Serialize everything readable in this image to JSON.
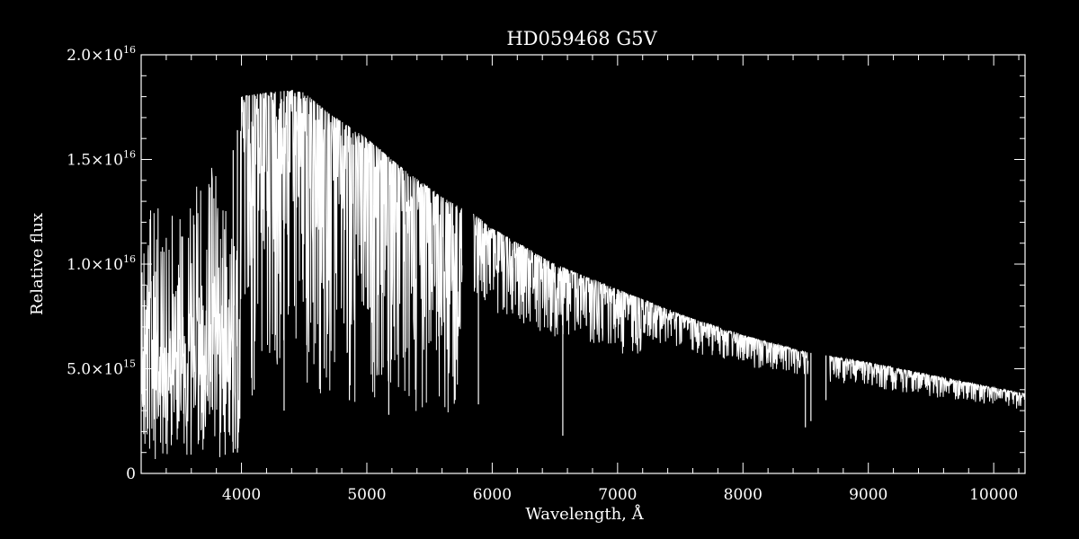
{
  "colors": {
    "background": "#000000",
    "foreground": "#ffffff"
  },
  "chart_data": {
    "type": "line",
    "title": "HD059468   G5V",
    "xlabel": "Wavelength, Å",
    "ylabel": "Relative flux",
    "xlim": [
      3200,
      10250
    ],
    "ylim": [
      0,
      2e+16
    ],
    "grid": false,
    "legend": "none",
    "x_ticks": [
      {
        "value": 4000,
        "label": "4000"
      },
      {
        "value": 5000,
        "label": "5000"
      },
      {
        "value": 6000,
        "label": "6000"
      },
      {
        "value": 7000,
        "label": "7000"
      },
      {
        "value": 8000,
        "label": "8000"
      },
      {
        "value": 9000,
        "label": "9000"
      },
      {
        "value": 10000,
        "label": "10000"
      }
    ],
    "y_ticks": [
      {
        "value": 0,
        "mantissa": "0",
        "exp": ""
      },
      {
        "value": 5000000000000000.0,
        "mantissa": "5.0×10",
        "exp": "15"
      },
      {
        "value": 1e+16,
        "mantissa": "1.0×10",
        "exp": "16"
      },
      {
        "value": 1.5e+16,
        "mantissa": "1.5×10",
        "exp": "16"
      },
      {
        "value": 2e+16,
        "mantissa": "2.0×10",
        "exp": "16"
      }
    ],
    "series": [
      {
        "continuum": {
          "x": [
            3200,
            3500,
            3800,
            3950,
            4000,
            4200,
            4400,
            4500,
            4700,
            5000,
            5300,
            5600,
            5750,
            5850,
            6000,
            6500,
            7000,
            7500,
            8000,
            8500,
            9000,
            9500,
            10000,
            10250
          ],
          "y": [
            1.25e+16,
            1.35e+16,
            1.5e+16,
            1.55e+16,
            1.8e+16,
            1.82e+16,
            1.83e+16,
            1.82e+16,
            1.72e+16,
            1.6e+16,
            1.45e+16,
            1.32e+16,
            1.27e+16,
            1.24e+16,
            1.17e+16,
            1e+16,
            8800000000000000.0,
            7600000000000000.0,
            6600000000000000.0,
            5800000000000000.0,
            5300000000000000.0,
            4700000000000000.0,
            4100000000000000.0,
            3800000000000000.0
          ]
        },
        "gaps": [
          [
            5760,
            5850
          ],
          [
            8520,
            8690
          ]
        ],
        "absorption_lines": [
          {
            "x": 3934,
            "y": 1000000000000000.0
          },
          {
            "x": 3968,
            "y": 1000000000000000.0
          },
          {
            "x": 4101,
            "y": 4000000000000000.0
          },
          {
            "x": 4340,
            "y": 3000000000000000.0
          },
          {
            "x": 4861,
            "y": 3500000000000000.0
          },
          {
            "x": 5175,
            "y": 2800000000000000.0
          },
          {
            "x": 5890,
            "y": 3300000000000000.0
          },
          {
            "x": 6563,
            "y": 1800000000000000.0
          },
          {
            "x": 8498,
            "y": 2200000000000000.0
          },
          {
            "x": 8542,
            "y": 2500000000000000.0
          },
          {
            "x": 8662,
            "y": 3500000000000000.0
          }
        ]
      }
    ]
  }
}
